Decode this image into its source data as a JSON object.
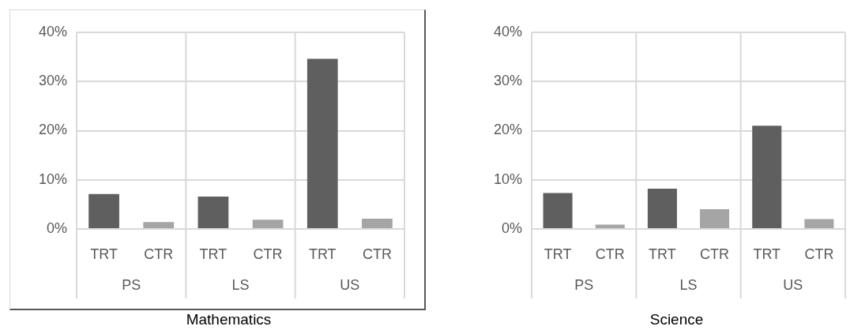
{
  "chart_data": [
    {
      "type": "bar",
      "title": "Mathematics",
      "categories": [
        "TRT",
        "CTR",
        "TRT",
        "CTR",
        "TRT",
        "CTR"
      ],
      "values": [
        7.1,
        1.4,
        6.6,
        1.9,
        34.6,
        2.1
      ],
      "colors": [
        "#5f5f5f",
        "#a5a5a5",
        "#5f5f5f",
        "#a5a5a5",
        "#5f5f5f",
        "#a5a5a5"
      ],
      "annotations": [
        "PS",
        "LS",
        "US"
      ],
      "ylim": [
        0,
        40
      ],
      "yticks": [
        {
          "value": 0,
          "label": "0%"
        },
        {
          "value": 10,
          "label": "10%"
        },
        {
          "value": 20,
          "label": "20%"
        },
        {
          "value": 30,
          "label": "30%"
        },
        {
          "value": 40,
          "label": "40%"
        }
      ],
      "grid": true,
      "legend": false
    },
    {
      "type": "bar",
      "title": "Science",
      "categories": [
        "TRT",
        "CTR",
        "TRT",
        "CTR",
        "TRT",
        "CTR"
      ],
      "values": [
        7.3,
        0.9,
        8.2,
        4.0,
        21.0,
        2.0
      ],
      "colors": [
        "#5f5f5f",
        "#a5a5a5",
        "#5f5f5f",
        "#a5a5a5",
        "#5f5f5f",
        "#a5a5a5"
      ],
      "annotations": [
        "PS",
        "LS",
        "US"
      ],
      "ylim": [
        0,
        40
      ],
      "yticks": [
        {
          "value": 0,
          "label": "0%"
        },
        {
          "value": 10,
          "label": "10%"
        },
        {
          "value": 20,
          "label": "20%"
        },
        {
          "value": 30,
          "label": "30%"
        },
        {
          "value": 40,
          "label": "40%"
        }
      ],
      "grid": true,
      "legend": false
    }
  ]
}
